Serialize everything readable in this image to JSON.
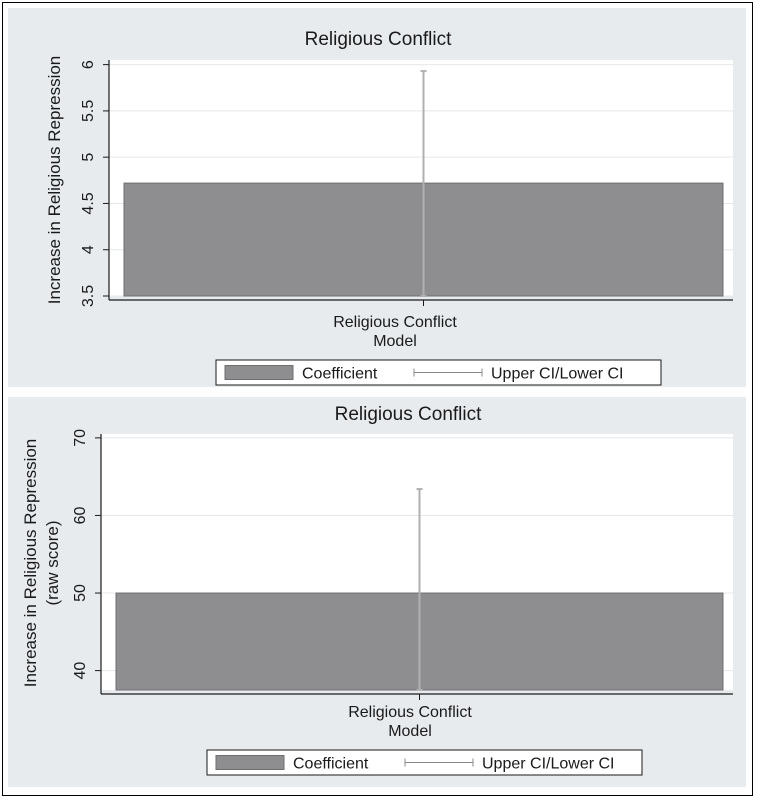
{
  "colors": {
    "outer_background": "#e8ebee",
    "plot_background": "#ffffff",
    "bar_fill": "#8e8e90",
    "bar_stroke": "#6e6e70",
    "ci_line": "#b0b0b0",
    "grid": "#e4e8ec",
    "axis": "#1a1a1a"
  },
  "chart_data": [
    {
      "type": "bar",
      "title": "Religious Conflict",
      "xlabel": "Model",
      "ylabel": "Increase in Religious Repression",
      "categories": [
        "Religious Conflict"
      ],
      "series": [
        {
          "name": "Coefficient",
          "values": [
            4.72
          ]
        },
        {
          "name": "Upper CI/Lower CI",
          "lower": [
            3.5
          ],
          "upper": [
            5.93
          ]
        }
      ],
      "y_ticks": [
        3.5,
        4,
        4.5,
        5,
        5.5,
        6
      ],
      "y_tick_labels": [
        "3.5",
        "4",
        "4.5",
        "5",
        "5.5",
        "6"
      ],
      "ylim": [
        3.5,
        6.05
      ],
      "grid": true,
      "legend": {
        "position": "bottom",
        "items": [
          {
            "label": "Coefficient",
            "kind": "bar"
          },
          {
            "label": "Upper CI/Lower CI",
            "kind": "range"
          }
        ]
      }
    },
    {
      "type": "bar",
      "title": "Religious Conflict",
      "xlabel": "Model",
      "ylabel": "Increase in Religious Repression",
      "ylabel2": "(raw score)",
      "categories": [
        "Religious Conflict"
      ],
      "series": [
        {
          "name": "Coefficient",
          "values": [
            50.0
          ]
        },
        {
          "name": "Upper CI/Lower CI",
          "lower": [
            37.5
          ],
          "upper": [
            63.4
          ]
        }
      ],
      "y_ticks": [
        40,
        50,
        60,
        70
      ],
      "y_tick_labels": [
        "40",
        "50",
        "60",
        "70"
      ],
      "ylim": [
        37.5,
        70.5
      ],
      "grid": true,
      "legend": {
        "position": "bottom",
        "items": [
          {
            "label": "Coefficient",
            "kind": "bar"
          },
          {
            "label": "Upper CI/Lower CI",
            "kind": "range"
          }
        ]
      }
    }
  ]
}
